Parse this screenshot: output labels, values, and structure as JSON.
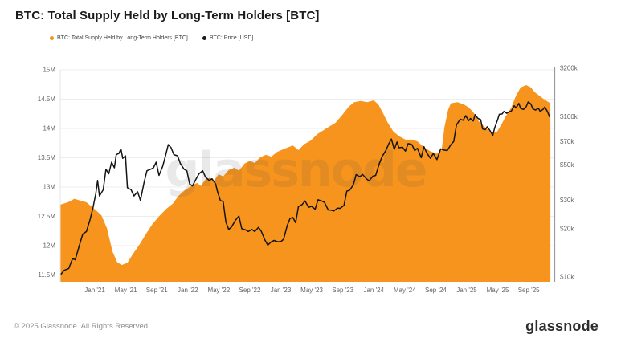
{
  "title": "BTC: Total Supply Held by Long-Term Holders [BTC]",
  "legend": {
    "items": [
      {
        "label": "BTC: Total Supply Held by Long-Term Holders [BTC]",
        "color": "#F7941D"
      },
      {
        "label": "BTC: Price [USD]",
        "color": "#1A1A1A"
      }
    ]
  },
  "watermark": "glassnode",
  "footer": {
    "copyright": "© 2025 Glassnode. All Rights Reserved.",
    "brand": "glassnode"
  },
  "colors": {
    "supply_area": "#F7941D",
    "price_line": "#141414",
    "gridline": "#ededed",
    "axis_text": "#5f6368",
    "right_axis_line": "#9a9a9a",
    "left_axis_line": "#e4e4e4",
    "watermark_fill": "rgba(70,70,70,0.12)"
  },
  "chart_data": {
    "type": "area",
    "title": "BTC: Total Supply Held by Long-Term Holders [BTC]",
    "grid": "horizontal-only",
    "legend_position": "top-left",
    "x_axis": {
      "range": [
        2020.628,
        2025.942
      ],
      "ticks": [
        {
          "t": 2021.0,
          "label": "Jan '21"
        },
        {
          "t": 2021.333,
          "label": "May '21"
        },
        {
          "t": 2021.667,
          "label": "Sep '21"
        },
        {
          "t": 2022.0,
          "label": "Jan '22"
        },
        {
          "t": 2022.333,
          "label": "May '22"
        },
        {
          "t": 2022.667,
          "label": "Sep '22"
        },
        {
          "t": 2023.0,
          "label": "Jan '23"
        },
        {
          "t": 2023.333,
          "label": "May '23"
        },
        {
          "t": 2023.667,
          "label": "Sep '23"
        },
        {
          "t": 2024.0,
          "label": "Jan '24"
        },
        {
          "t": 2024.333,
          "label": "May '24"
        },
        {
          "t": 2024.667,
          "label": "Sep '24"
        },
        {
          "t": 2025.0,
          "label": "Jan '25"
        },
        {
          "t": 2025.333,
          "label": "May '25"
        },
        {
          "t": 2025.667,
          "label": "Sep '25"
        }
      ]
    },
    "left_axis": {
      "scale": "linear",
      "unit": "BTC (millions)",
      "range": [
        11.384,
        15
      ],
      "ticks": [
        {
          "v": 15,
          "label": "15M"
        },
        {
          "v": 14.5,
          "label": "14.5M"
        },
        {
          "v": 14,
          "label": "14M"
        },
        {
          "v": 13.5,
          "label": "13.5M"
        },
        {
          "v": 13,
          "label": "13M"
        },
        {
          "v": 12.5,
          "label": "12.5M"
        },
        {
          "v": 12,
          "label": "12M"
        },
        {
          "v": 11.5,
          "label": "11.5M"
        }
      ]
    },
    "right_axis": {
      "scale": "log",
      "unit": "USD (thousands)",
      "range": [
        9.33,
        196
      ],
      "ticks": [
        {
          "v": 200,
          "label": "$200k"
        },
        {
          "v": 100,
          "label": "$100k"
        },
        {
          "v": 70,
          "label": "$70k"
        },
        {
          "v": 50,
          "label": "$50k"
        },
        {
          "v": 30,
          "label": "$30k"
        },
        {
          "v": 20,
          "label": "$20k"
        },
        {
          "v": 10,
          "label": "$10k"
        }
      ]
    },
    "series": [
      {
        "name": "BTC: Total Supply Held by Long-Term Holders [BTC]",
        "render": "area",
        "axis": "left",
        "color": "#F7941D",
        "points": [
          [
            2020.63,
            12.7
          ],
          [
            2020.71,
            12.74
          ],
          [
            2020.78,
            12.8
          ],
          [
            2020.84,
            12.77
          ],
          [
            2020.91,
            12.74
          ],
          [
            2021.0,
            12.62
          ],
          [
            2021.07,
            12.52
          ],
          [
            2021.13,
            12.3
          ],
          [
            2021.19,
            11.9
          ],
          [
            2021.24,
            11.72
          ],
          [
            2021.29,
            11.67
          ],
          [
            2021.35,
            11.71
          ],
          [
            2021.41,
            11.86
          ],
          [
            2021.48,
            12.02
          ],
          [
            2021.55,
            12.2
          ],
          [
            2021.62,
            12.37
          ],
          [
            2021.69,
            12.5
          ],
          [
            2021.77,
            12.63
          ],
          [
            2021.84,
            12.72
          ],
          [
            2021.9,
            12.85
          ],
          [
            2021.97,
            12.95
          ],
          [
            2022.04,
            13.02
          ],
          [
            2022.1,
            13.07
          ],
          [
            2022.14,
            13.02
          ],
          [
            2022.19,
            13.13
          ],
          [
            2022.24,
            13.16
          ],
          [
            2022.28,
            13.1
          ],
          [
            2022.33,
            13.22
          ],
          [
            2022.38,
            13.18
          ],
          [
            2022.44,
            13.29
          ],
          [
            2022.5,
            13.33
          ],
          [
            2022.55,
            13.28
          ],
          [
            2022.61,
            13.4
          ],
          [
            2022.67,
            13.45
          ],
          [
            2022.72,
            13.41
          ],
          [
            2022.78,
            13.51
          ],
          [
            2022.84,
            13.55
          ],
          [
            2022.9,
            13.52
          ],
          [
            2022.96,
            13.6
          ],
          [
            2023.02,
            13.64
          ],
          [
            2023.08,
            13.68
          ],
          [
            2023.13,
            13.71
          ],
          [
            2023.19,
            13.63
          ],
          [
            2023.25,
            13.73
          ],
          [
            2023.32,
            13.79
          ],
          [
            2023.39,
            13.9
          ],
          [
            2023.45,
            13.96
          ],
          [
            2023.52,
            14.03
          ],
          [
            2023.59,
            14.1
          ],
          [
            2023.66,
            14.23
          ],
          [
            2023.73,
            14.37
          ],
          [
            2023.79,
            14.45
          ],
          [
            2023.86,
            14.47
          ],
          [
            2023.93,
            14.45
          ],
          [
            2024.0,
            14.48
          ],
          [
            2024.05,
            14.41
          ],
          [
            2024.1,
            14.26
          ],
          [
            2024.15,
            14.1
          ],
          [
            2024.21,
            13.95
          ],
          [
            2024.27,
            13.87
          ],
          [
            2024.34,
            13.81
          ],
          [
            2024.41,
            13.81
          ],
          [
            2024.47,
            13.78
          ],
          [
            2024.54,
            13.68
          ],
          [
            2024.61,
            13.61
          ],
          [
            2024.68,
            13.57
          ],
          [
            2024.73,
            13.63
          ],
          [
            2024.76,
            14.02
          ],
          [
            2024.8,
            14.32
          ],
          [
            2024.83,
            14.43
          ],
          [
            2024.9,
            14.45
          ],
          [
            2024.97,
            14.41
          ],
          [
            2025.02,
            14.36
          ],
          [
            2025.07,
            14.28
          ],
          [
            2025.13,
            14.12
          ],
          [
            2025.19,
            14.03
          ],
          [
            2025.26,
            13.94
          ],
          [
            2025.32,
            13.93
          ],
          [
            2025.37,
            14.06
          ],
          [
            2025.42,
            14.21
          ],
          [
            2025.48,
            14.36
          ],
          [
            2025.53,
            14.56
          ],
          [
            2025.58,
            14.7
          ],
          [
            2025.64,
            14.74
          ],
          [
            2025.69,
            14.7
          ],
          [
            2025.73,
            14.62
          ],
          [
            2025.78,
            14.56
          ],
          [
            2025.83,
            14.5
          ],
          [
            2025.9,
            14.43
          ]
        ]
      },
      {
        "name": "BTC: Price [USD]",
        "render": "line",
        "axis": "right",
        "color": "#141414",
        "points": [
          [
            2020.63,
            10.3
          ],
          [
            2020.67,
            11.0
          ],
          [
            2020.72,
            11.3
          ],
          [
            2020.76,
            13.0
          ],
          [
            2020.79,
            12.8
          ],
          [
            2020.83,
            15.5
          ],
          [
            2020.87,
            18.5
          ],
          [
            2020.91,
            19.2
          ],
          [
            2020.95,
            23
          ],
          [
            2020.98,
            27
          ],
          [
            2021.01,
            33
          ],
          [
            2021.03,
            40
          ],
          [
            2021.05,
            32
          ],
          [
            2021.09,
            35
          ],
          [
            2021.12,
            47
          ],
          [
            2021.15,
            44
          ],
          [
            2021.18,
            52
          ],
          [
            2021.21,
            48
          ],
          [
            2021.23,
            58
          ],
          [
            2021.26,
            59
          ],
          [
            2021.28,
            63
          ],
          [
            2021.3,
            55
          ],
          [
            2021.33,
            57
          ],
          [
            2021.35,
            36
          ],
          [
            2021.39,
            35
          ],
          [
            2021.42,
            32
          ],
          [
            2021.46,
            34
          ],
          [
            2021.49,
            30
          ],
          [
            2021.53,
            39
          ],
          [
            2021.56,
            46
          ],
          [
            2021.6,
            47
          ],
          [
            2021.63,
            48
          ],
          [
            2021.66,
            52
          ],
          [
            2021.69,
            43
          ],
          [
            2021.73,
            49
          ],
          [
            2021.76,
            57
          ],
          [
            2021.79,
            67
          ],
          [
            2021.82,
            64
          ],
          [
            2021.85,
            58
          ],
          [
            2021.89,
            57
          ],
          [
            2021.92,
            51
          ],
          [
            2021.96,
            47
          ],
          [
            2021.99,
            46
          ],
          [
            2022.02,
            38
          ],
          [
            2022.05,
            37
          ],
          [
            2022.09,
            41
          ],
          [
            2022.12,
            44
          ],
          [
            2022.16,
            46
          ],
          [
            2022.19,
            42
          ],
          [
            2022.23,
            40
          ],
          [
            2022.26,
            41
          ],
          [
            2022.3,
            38
          ],
          [
            2022.32,
            34
          ],
          [
            2022.35,
            30
          ],
          [
            2022.38,
            29.5
          ],
          [
            2022.41,
            22
          ],
          [
            2022.44,
            19.8
          ],
          [
            2022.47,
            20.5
          ],
          [
            2022.51,
            22.5
          ],
          [
            2022.55,
            24
          ],
          [
            2022.58,
            20
          ],
          [
            2022.62,
            19.7
          ],
          [
            2022.65,
            19.2
          ],
          [
            2022.69,
            19.8
          ],
          [
            2022.72,
            19.2
          ],
          [
            2022.76,
            20.4
          ],
          [
            2022.79,
            19.3
          ],
          [
            2022.83,
            17
          ],
          [
            2022.86,
            15.8
          ],
          [
            2022.9,
            16.6
          ],
          [
            2022.93,
            16.9
          ],
          [
            2022.96,
            16.6
          ],
          [
            2023.0,
            16.6
          ],
          [
            2023.03,
            17.2
          ],
          [
            2023.07,
            21
          ],
          [
            2023.1,
            23.2
          ],
          [
            2023.13,
            23.5
          ],
          [
            2023.16,
            21.8
          ],
          [
            2023.19,
            27.5
          ],
          [
            2023.23,
            28.3
          ],
          [
            2023.26,
            29.8
          ],
          [
            2023.3,
            27.2
          ],
          [
            2023.33,
            27.6
          ],
          [
            2023.37,
            26.5
          ],
          [
            2023.4,
            30.3
          ],
          [
            2023.44,
            29.8
          ],
          [
            2023.47,
            29.2
          ],
          [
            2023.51,
            26.2
          ],
          [
            2023.54,
            26.1
          ],
          [
            2023.57,
            25.8
          ],
          [
            2023.61,
            26.9
          ],
          [
            2023.64,
            26.8
          ],
          [
            2023.68,
            28
          ],
          [
            2023.71,
            34.3
          ],
          [
            2023.74,
            34.8
          ],
          [
            2023.78,
            37.5
          ],
          [
            2023.81,
            43.5
          ],
          [
            2023.85,
            42.2
          ],
          [
            2023.88,
            43.6
          ],
          [
            2023.92,
            41
          ],
          [
            2023.95,
            39.8
          ],
          [
            2023.99,
            42.5
          ],
          [
            2024.02,
            43
          ],
          [
            2024.06,
            51
          ],
          [
            2024.09,
            56.5
          ],
          [
            2024.13,
            61.5
          ],
          [
            2024.16,
            67.5
          ],
          [
            2024.19,
            72.5
          ],
          [
            2024.22,
            62.5
          ],
          [
            2024.25,
            69.5
          ],
          [
            2024.27,
            64
          ],
          [
            2024.31,
            64.5
          ],
          [
            2024.34,
            61
          ],
          [
            2024.37,
            68
          ],
          [
            2024.41,
            67
          ],
          [
            2024.44,
            61.5
          ],
          [
            2024.47,
            63.5
          ],
          [
            2024.51,
            55.5
          ],
          [
            2024.54,
            65
          ],
          [
            2024.57,
            59.5
          ],
          [
            2024.61,
            55
          ],
          [
            2024.64,
            59
          ],
          [
            2024.68,
            54
          ],
          [
            2024.72,
            63
          ],
          [
            2024.75,
            62
          ],
          [
            2024.79,
            61.5
          ],
          [
            2024.83,
            67
          ],
          [
            2024.86,
            70
          ],
          [
            2024.89,
            89
          ],
          [
            2024.93,
            96.5
          ],
          [
            2024.96,
            95
          ],
          [
            2024.99,
            101.5
          ],
          [
            2025.02,
            94.5
          ],
          [
            2025.04,
            97.5
          ],
          [
            2025.07,
            94
          ],
          [
            2025.09,
            103
          ],
          [
            2025.12,
            97.5
          ],
          [
            2025.15,
            96
          ],
          [
            2025.17,
            84
          ],
          [
            2025.2,
            83
          ],
          [
            2025.22,
            86.5
          ],
          [
            2025.25,
            82
          ],
          [
            2025.28,
            76.5
          ],
          [
            2025.3,
            85
          ],
          [
            2025.33,
            95
          ],
          [
            2025.35,
            103.5
          ],
          [
            2025.38,
            104
          ],
          [
            2025.4,
            108
          ],
          [
            2025.43,
            105
          ],
          [
            2025.46,
            107.5
          ],
          [
            2025.48,
            108.5
          ],
          [
            2025.51,
            117
          ],
          [
            2025.53,
            113.5
          ],
          [
            2025.56,
            121
          ],
          [
            2025.58,
            112.5
          ],
          [
            2025.61,
            111
          ],
          [
            2025.64,
            115.5
          ],
          [
            2025.66,
            123.5
          ],
          [
            2025.69,
            120
          ],
          [
            2025.71,
            112
          ],
          [
            2025.74,
            110
          ],
          [
            2025.77,
            113
          ],
          [
            2025.79,
            108
          ],
          [
            2025.82,
            111
          ],
          [
            2025.84,
            115
          ],
          [
            2025.87,
            107
          ],
          [
            2025.89,
            100
          ]
        ]
      }
    ]
  }
}
